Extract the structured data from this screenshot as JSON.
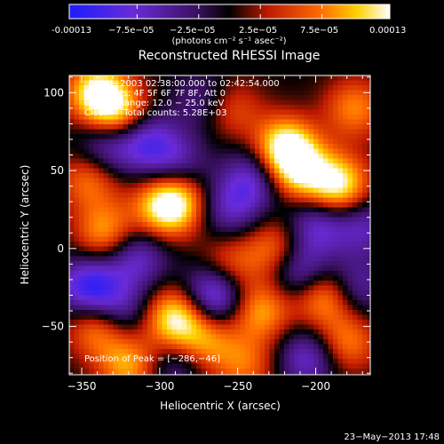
{
  "chart_data": {
    "type": "heatmap",
    "title": "Reconstructed RHESSI Image",
    "xlabel": "Heliocentric X (arcsec)",
    "ylabel": "Heliocentric Y (arcsec)",
    "xlim": [
      -358,
      -165
    ],
    "ylim": [
      -81,
      111
    ],
    "x_ticks": [
      -350,
      -300,
      -250,
      -200
    ],
    "y_ticks": [
      -50,
      0,
      50,
      100
    ],
    "colorbar": {
      "label": "(photons cm⁻² s⁻¹ asec⁻²)",
      "range": [
        -0.00013,
        0.00013
      ],
      "tick_labels": [
        "-0.00013",
        "−7.5e−05",
        "−2.5e−05",
        "2.5e−05",
        "7.5e−05",
        "0.00013"
      ],
      "tick_values": [
        -0.00013,
        -7.5e-05,
        -2.5e-05,
        2.5e-05,
        7.5e-05,
        0.00013
      ]
    },
    "annotations": {
      "time": "6−Jul−2003 02:38:00.000 to 02:42:54.000",
      "detectors": "Detectors: 4F 5F 6F 7F 8F, Att 0",
      "energy": "Energy Range: 12.0 − 25.0 keV",
      "clean": "Clean     Total counts: 5.28E+03",
      "peak": "Position of Peak = [−286,−46]"
    },
    "footer_timestamp": "23−May−2013 17:48",
    "blobs": [
      {
        "x": -340,
        "y": 100,
        "value": 1.0
      },
      {
        "x": -325,
        "y": 85,
        "value": 0.8
      },
      {
        "x": -345,
        "y": 45,
        "value": 0.6
      },
      {
        "x": -335,
        "y": 10,
        "value": 0.7
      },
      {
        "x": -300,
        "y": 25,
        "value": 0.5
      },
      {
        "x": -290,
        "y": 30,
        "value": 0.9
      },
      {
        "x": -255,
        "y": 90,
        "value": 0.5
      },
      {
        "x": -220,
        "y": 65,
        "value": 1.0
      },
      {
        "x": -210,
        "y": 50,
        "value": 0.8
      },
      {
        "x": -185,
        "y": 40,
        "value": 1.0
      },
      {
        "x": -175,
        "y": 90,
        "value": 0.6
      },
      {
        "x": -195,
        "y": -30,
        "value": 0.8
      },
      {
        "x": -180,
        "y": -60,
        "value": 0.6
      },
      {
        "x": -225,
        "y": 0,
        "value": 0.6
      },
      {
        "x": -255,
        "y": -10,
        "value": 0.5
      },
      {
        "x": -290,
        "y": -45,
        "value": 1.0
      },
      {
        "x": -270,
        "y": -60,
        "value": 0.6
      },
      {
        "x": -235,
        "y": -40,
        "value": 0.7
      },
      {
        "x": -340,
        "y": -50,
        "value": 0.7
      },
      {
        "x": -320,
        "y": -75,
        "value": 0.7
      },
      {
        "x": -245,
        "y": -75,
        "value": 0.5
      },
      {
        "x": -335,
        "y": 65,
        "value": -0.6
      },
      {
        "x": -310,
        "y": 70,
        "value": -0.7
      },
      {
        "x": -290,
        "y": 55,
        "value": -0.5
      },
      {
        "x": -270,
        "y": 95,
        "value": -0.4
      },
      {
        "x": -240,
        "y": 45,
        "value": -0.6
      },
      {
        "x": -315,
        "y": -5,
        "value": -0.6
      },
      {
        "x": -345,
        "y": -25,
        "value": -0.9
      },
      {
        "x": -325,
        "y": -40,
        "value": -0.5
      },
      {
        "x": -255,
        "y": 25,
        "value": -0.5
      },
      {
        "x": -200,
        "y": 15,
        "value": -0.6
      },
      {
        "x": -265,
        "y": -30,
        "value": -0.9
      },
      {
        "x": -210,
        "y": -15,
        "value": -0.7
      },
      {
        "x": -175,
        "y": -25,
        "value": -0.5
      },
      {
        "x": -205,
        "y": -70,
        "value": -0.6
      },
      {
        "x": -290,
        "y": -75,
        "value": -0.4
      },
      {
        "x": -170,
        "y": 15,
        "value": -0.5
      }
    ]
  }
}
